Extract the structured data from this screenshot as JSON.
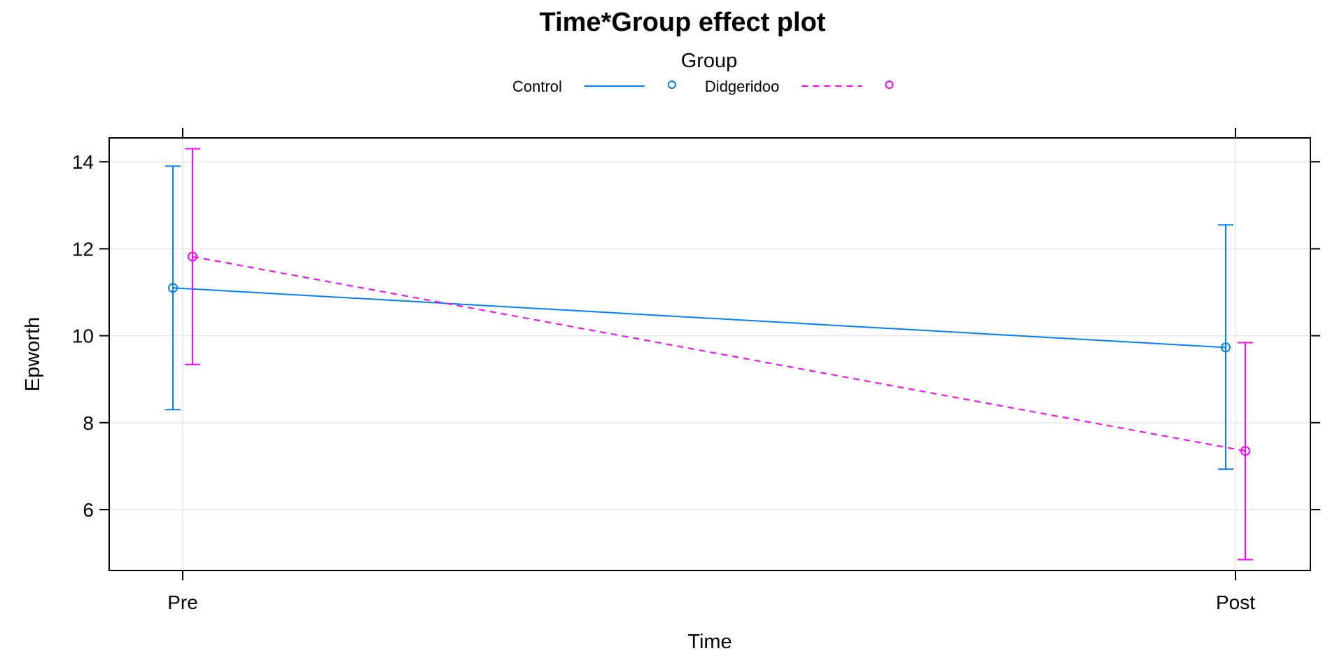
{
  "chart_data": {
    "type": "line",
    "title": "Time*Group effect plot",
    "xlabel": "Time",
    "ylabel": "Epworth",
    "categories": [
      "Pre",
      "Post"
    ],
    "yticks": [
      6,
      8,
      10,
      12,
      14
    ],
    "ylim": [
      4.6,
      14.55
    ],
    "grid": true,
    "legend": {
      "title": "Group",
      "placement": "top"
    },
    "series": [
      {
        "name": "Control",
        "color": "#0080ff",
        "line_style": "solid",
        "marker": "circle",
        "values": [
          11.1,
          9.73
        ],
        "lower": [
          8.3,
          6.93
        ],
        "upper": [
          13.9,
          12.55
        ]
      },
      {
        "name": "Didgeridoo",
        "color": "#ff00ff",
        "line_style": "dashed",
        "marker": "circle",
        "values": [
          11.82,
          7.35
        ],
        "lower": [
          9.34,
          4.85
        ],
        "upper": [
          14.3,
          9.84
        ]
      }
    ]
  }
}
